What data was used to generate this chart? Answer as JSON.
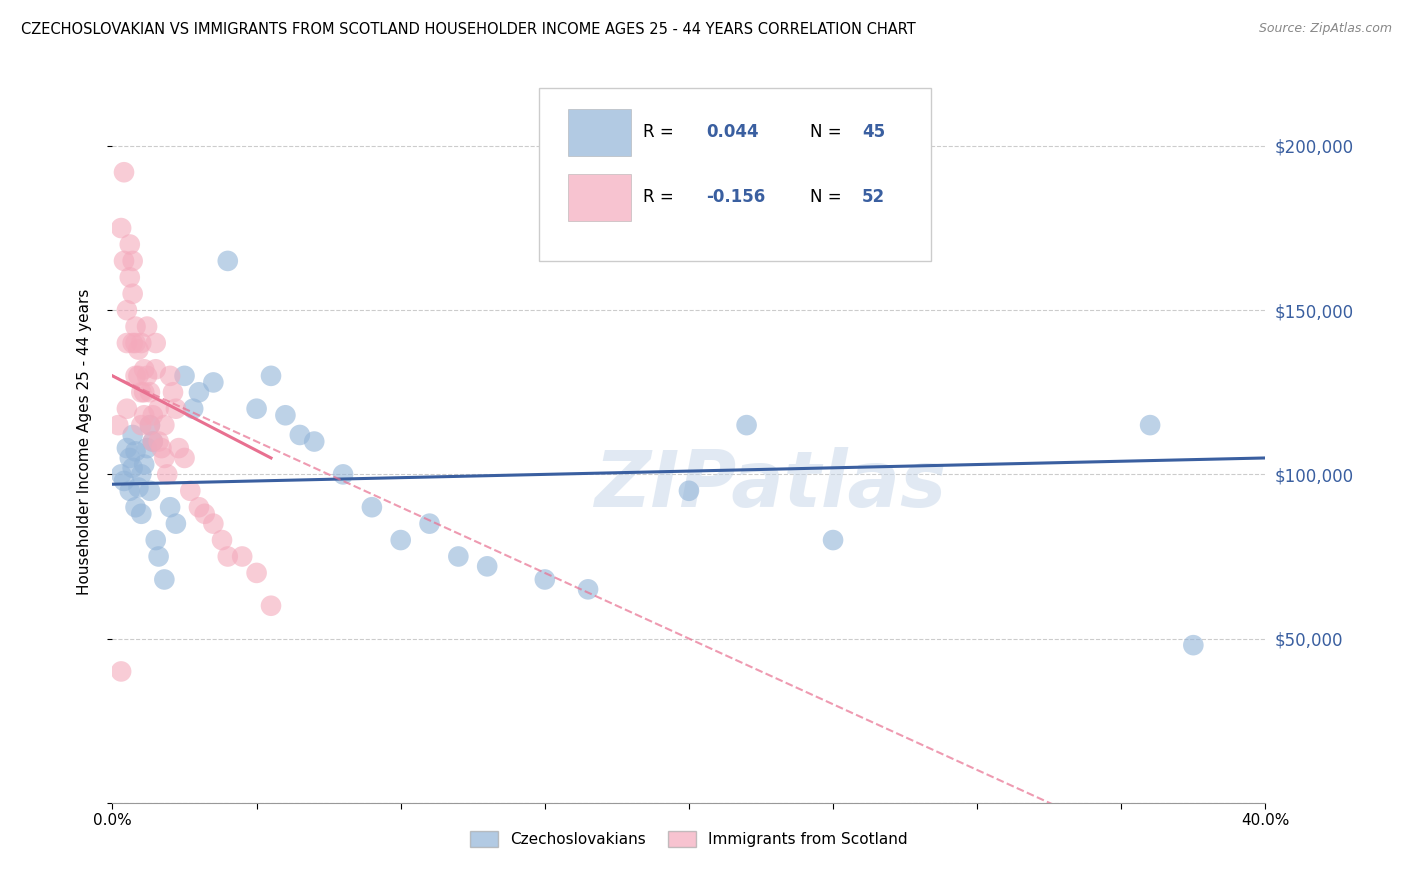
{
  "title": "CZECHOSLOVAKIAN VS IMMIGRANTS FROM SCOTLAND HOUSEHOLDER INCOME AGES 25 - 44 YEARS CORRELATION CHART",
  "source": "Source: ZipAtlas.com",
  "ylabel": "Householder Income Ages 25 - 44 years",
  "xlim": [
    0.0,
    0.4
  ],
  "ylim": [
    0,
    220000
  ],
  "yticks": [
    0,
    50000,
    100000,
    150000,
    200000
  ],
  "xticks": [
    0.0,
    0.05,
    0.1,
    0.15,
    0.2,
    0.25,
    0.3,
    0.35,
    0.4
  ],
  "blue_color": "#92B4D8",
  "pink_color": "#F4AABC",
  "blue_line_color": "#3A5FA0",
  "pink_line_color": "#E87090",
  "watermark": "ZIPatlas",
  "R1": "0.044",
  "N1": "45",
  "R2": "-0.156",
  "N2": "52",
  "legend_label1": "Czechoslovakians",
  "legend_label2": "Immigrants from Scotland",
  "blue_x": [
    0.003,
    0.004,
    0.005,
    0.006,
    0.006,
    0.007,
    0.007,
    0.008,
    0.008,
    0.009,
    0.01,
    0.01,
    0.011,
    0.012,
    0.013,
    0.013,
    0.014,
    0.015,
    0.016,
    0.018,
    0.02,
    0.022,
    0.025,
    0.028,
    0.03,
    0.035,
    0.04,
    0.05,
    0.055,
    0.06,
    0.065,
    0.07,
    0.08,
    0.09,
    0.1,
    0.11,
    0.12,
    0.13,
    0.15,
    0.165,
    0.2,
    0.22,
    0.25,
    0.36,
    0.375
  ],
  "blue_y": [
    100000,
    98000,
    108000,
    95000,
    105000,
    102000,
    112000,
    90000,
    107000,
    96000,
    100000,
    88000,
    103000,
    108000,
    95000,
    115000,
    110000,
    80000,
    75000,
    68000,
    90000,
    85000,
    130000,
    120000,
    125000,
    128000,
    165000,
    120000,
    130000,
    118000,
    112000,
    110000,
    100000,
    90000,
    80000,
    85000,
    75000,
    72000,
    68000,
    65000,
    95000,
    115000,
    80000,
    115000,
    48000
  ],
  "pink_x": [
    0.002,
    0.003,
    0.004,
    0.004,
    0.005,
    0.005,
    0.005,
    0.006,
    0.006,
    0.007,
    0.007,
    0.007,
    0.008,
    0.008,
    0.008,
    0.009,
    0.009,
    0.01,
    0.01,
    0.01,
    0.011,
    0.011,
    0.011,
    0.012,
    0.012,
    0.013,
    0.013,
    0.014,
    0.014,
    0.015,
    0.015,
    0.016,
    0.016,
    0.017,
    0.018,
    0.018,
    0.019,
    0.02,
    0.021,
    0.022,
    0.023,
    0.025,
    0.027,
    0.03,
    0.032,
    0.035,
    0.038,
    0.04,
    0.045,
    0.05,
    0.055,
    0.003
  ],
  "pink_y": [
    115000,
    175000,
    192000,
    165000,
    140000,
    150000,
    120000,
    170000,
    160000,
    165000,
    155000,
    140000,
    140000,
    130000,
    145000,
    138000,
    130000,
    125000,
    140000,
    115000,
    132000,
    125000,
    118000,
    145000,
    130000,
    115000,
    125000,
    118000,
    110000,
    140000,
    132000,
    110000,
    120000,
    108000,
    115000,
    105000,
    100000,
    130000,
    125000,
    120000,
    108000,
    105000,
    95000,
    90000,
    88000,
    85000,
    80000,
    75000,
    75000,
    70000,
    60000,
    40000
  ]
}
